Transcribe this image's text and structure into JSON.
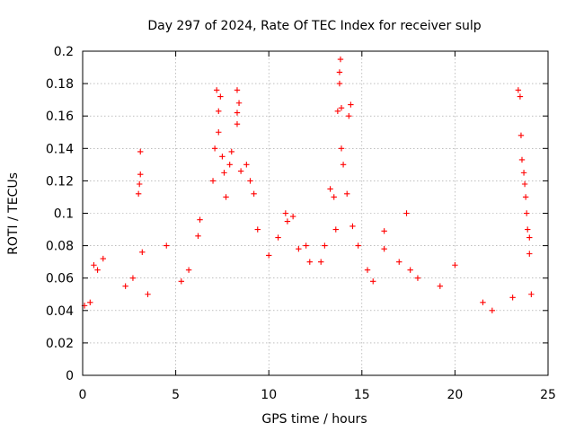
{
  "chart_data": {
    "type": "scatter",
    "title": "Day 297 of 2024, Rate Of TEC Index for receiver sulp",
    "xlabel": "GPS time / hours",
    "ylabel": "ROTI / TECUs",
    "xlim": [
      0,
      25
    ],
    "ylim": [
      0,
      0.2
    ],
    "xticks": [
      "0",
      "5",
      "10",
      "15",
      "20",
      "25"
    ],
    "yticks": [
      "0",
      "0.02",
      "0.04",
      "0.06",
      "0.08",
      "0.1",
      "0.12",
      "0.14",
      "0.16",
      "0.18",
      "0.2"
    ],
    "grid": true,
    "marker": "+",
    "color": "#ff0000",
    "series": [
      {
        "values": [
          [
            0.1,
            0.043
          ],
          [
            0.4,
            0.045
          ],
          [
            0.6,
            0.068
          ],
          [
            0.8,
            0.065
          ],
          [
            1.1,
            0.072
          ],
          [
            2.3,
            0.055
          ],
          [
            2.7,
            0.06
          ],
          [
            3.0,
            0.112
          ],
          [
            3.05,
            0.118
          ],
          [
            3.1,
            0.138
          ],
          [
            3.1,
            0.124
          ],
          [
            3.2,
            0.076
          ],
          [
            3.5,
            0.05
          ],
          [
            4.5,
            0.08
          ],
          [
            5.3,
            0.058
          ],
          [
            5.7,
            0.065
          ],
          [
            6.2,
            0.086
          ],
          [
            6.3,
            0.096
          ],
          [
            7.0,
            0.12
          ],
          [
            7.1,
            0.14
          ],
          [
            7.2,
            0.176
          ],
          [
            7.3,
            0.163
          ],
          [
            7.3,
            0.15
          ],
          [
            7.4,
            0.172
          ],
          [
            7.5,
            0.135
          ],
          [
            7.6,
            0.125
          ],
          [
            7.7,
            0.11
          ],
          [
            7.9,
            0.13
          ],
          [
            8.0,
            0.138
          ],
          [
            8.3,
            0.176
          ],
          [
            8.3,
            0.162
          ],
          [
            8.3,
            0.155
          ],
          [
            8.4,
            0.168
          ],
          [
            8.5,
            0.126
          ],
          [
            8.8,
            0.13
          ],
          [
            9.0,
            0.12
          ],
          [
            9.2,
            0.112
          ],
          [
            9.4,
            0.09
          ],
          [
            10.0,
            0.074
          ],
          [
            10.5,
            0.085
          ],
          [
            10.9,
            0.1
          ],
          [
            11.0,
            0.095
          ],
          [
            11.3,
            0.098
          ],
          [
            11.6,
            0.078
          ],
          [
            12.0,
            0.08
          ],
          [
            12.2,
            0.07
          ],
          [
            12.8,
            0.07
          ],
          [
            13.0,
            0.08
          ],
          [
            13.3,
            0.115
          ],
          [
            13.5,
            0.11
          ],
          [
            13.6,
            0.09
          ],
          [
            13.7,
            0.163
          ],
          [
            13.8,
            0.18
          ],
          [
            13.8,
            0.187
          ],
          [
            13.85,
            0.195
          ],
          [
            13.9,
            0.165
          ],
          [
            13.9,
            0.14
          ],
          [
            14.0,
            0.13
          ],
          [
            14.2,
            0.112
          ],
          [
            14.3,
            0.16
          ],
          [
            14.4,
            0.167
          ],
          [
            14.5,
            0.092
          ],
          [
            14.8,
            0.08
          ],
          [
            15.3,
            0.065
          ],
          [
            15.6,
            0.058
          ],
          [
            16.2,
            0.078
          ],
          [
            16.2,
            0.089
          ],
          [
            17.0,
            0.07
          ],
          [
            17.4,
            0.1
          ],
          [
            17.6,
            0.065
          ],
          [
            18.0,
            0.06
          ],
          [
            19.2,
            0.055
          ],
          [
            20.0,
            0.068
          ],
          [
            21.5,
            0.045
          ],
          [
            22.0,
            0.04
          ],
          [
            23.1,
            0.048
          ],
          [
            23.4,
            0.176
          ],
          [
            23.5,
            0.172
          ],
          [
            23.55,
            0.148
          ],
          [
            23.6,
            0.133
          ],
          [
            23.7,
            0.125
          ],
          [
            23.75,
            0.118
          ],
          [
            23.8,
            0.11
          ],
          [
            23.85,
            0.1
          ],
          [
            23.9,
            0.09
          ],
          [
            24.0,
            0.085
          ],
          [
            24.0,
            0.075
          ],
          [
            24.1,
            0.05
          ]
        ]
      }
    ]
  }
}
